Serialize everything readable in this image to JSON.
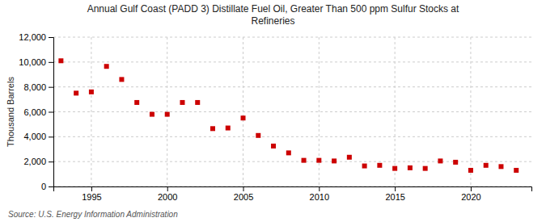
{
  "chart_data": {
    "type": "scatter",
    "title": "Annual Gulf Coast (PADD 3) Distillate Fuel Oil, Greater Than 500 ppm Sulfur Stocks at\nRefineries",
    "ylabel": "Thousand Barrels",
    "annotations": [
      "Source: U.S. Energy Information Administration"
    ],
    "color": "#cc0000",
    "marker": "square",
    "grid": true,
    "x": [
      1993,
      1994,
      1995,
      1996,
      1997,
      1998,
      1999,
      2000,
      2001,
      2002,
      2003,
      2004,
      2005,
      2006,
      2007,
      2008,
      2009,
      2010,
      2011,
      2012,
      2013,
      2014,
      2015,
      2016,
      2017,
      2018,
      2019,
      2020,
      2021,
      2022,
      2023
    ],
    "values": [
      10100,
      7500,
      7600,
      9650,
      8600,
      6750,
      5800,
      5800,
      6750,
      6750,
      4650,
      4700,
      5500,
      4100,
      3250,
      2700,
      2100,
      2100,
      2050,
      2350,
      1650,
      1700,
      1450,
      1500,
      1450,
      2050,
      1950,
      1300,
      1700,
      1600,
      1300
    ],
    "xlim": [
      1992.5,
      2024
    ],
    "xticks": [
      1995,
      2000,
      2005,
      2010,
      2015,
      2020
    ],
    "ylim": [
      0,
      12000
    ],
    "yticks": [
      0,
      {
        "value": 2000,
        "label": "2,000"
      },
      {
        "value": 4000,
        "label": "4,000"
      },
      {
        "value": 6000,
        "label": "6,000"
      },
      {
        "value": 8000,
        "label": "8,000"
      },
      {
        "value": 10000,
        "label": "10,000"
      },
      {
        "value": 12000,
        "label": "12,000"
      }
    ]
  }
}
